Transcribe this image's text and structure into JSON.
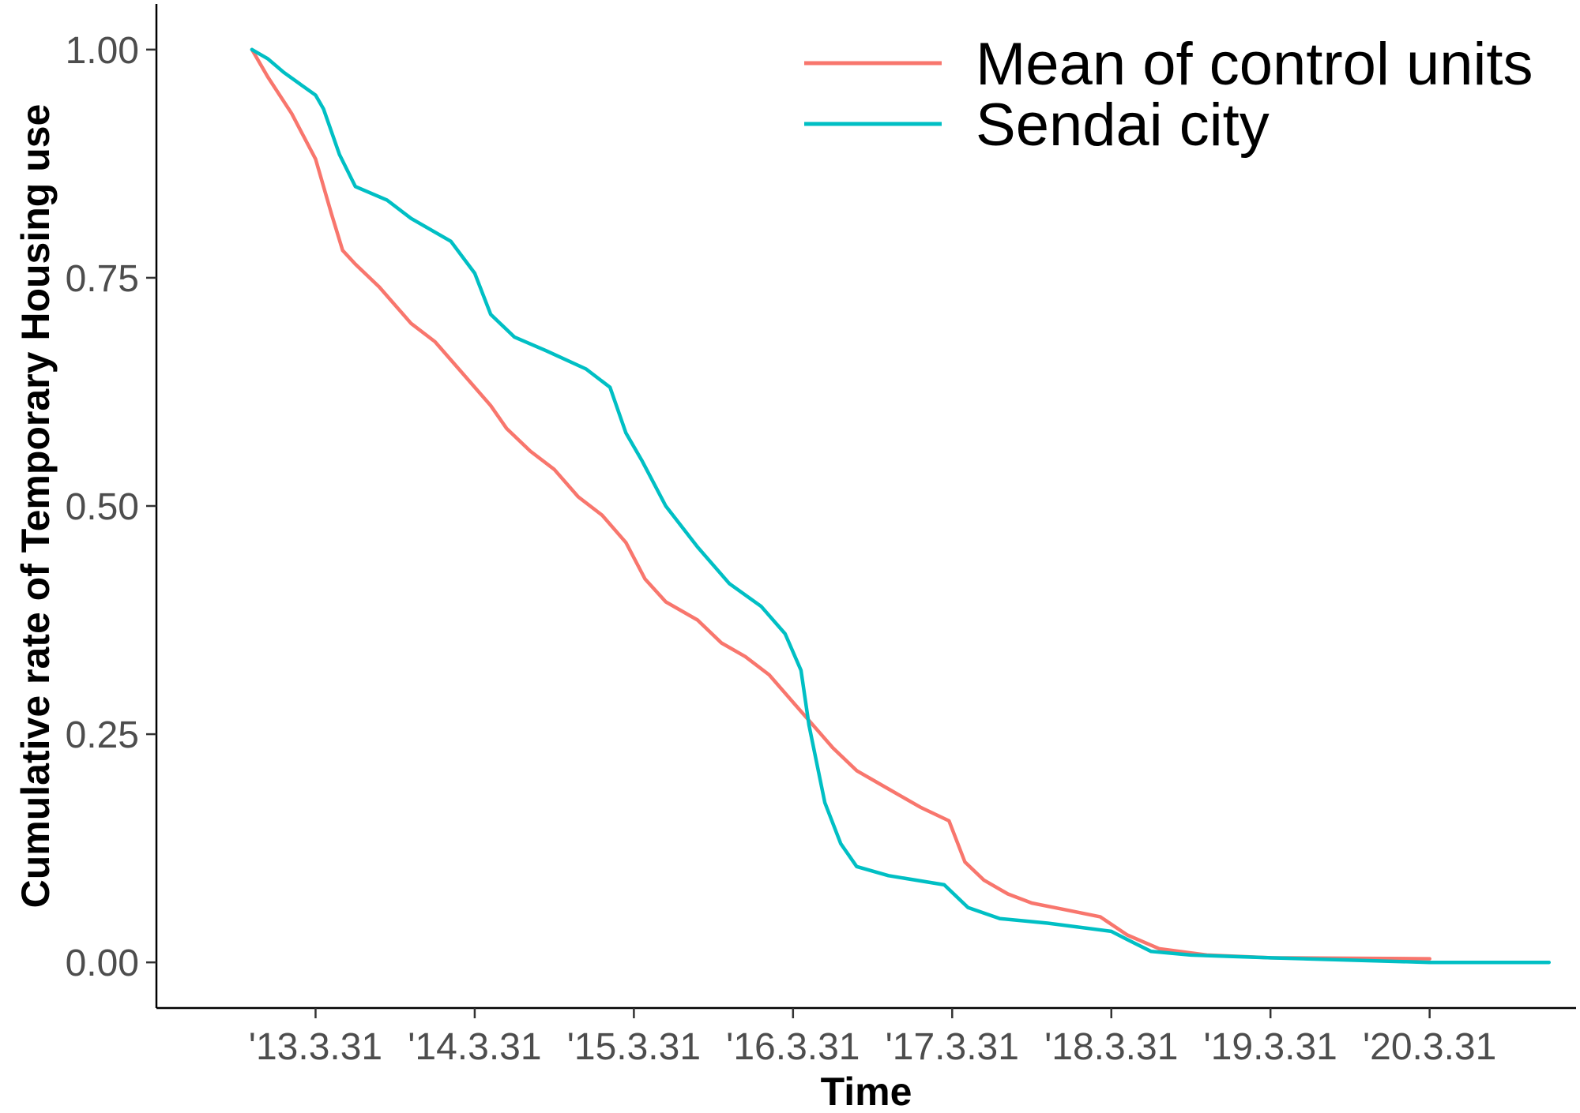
{
  "chart_data": {
    "type": "line",
    "title": "",
    "xlabel": "Time",
    "ylabel": "Cumulative rate of Temporary Housing use",
    "x_ticks": [
      {
        "pos": 1.0,
        "label": "'13.3.31"
      },
      {
        "pos": 2.0,
        "label": "'14.3.31"
      },
      {
        "pos": 3.0,
        "label": "'15.3.31"
      },
      {
        "pos": 4.0,
        "label": "'16.3.31"
      },
      {
        "pos": 5.0,
        "label": "'17.3.31"
      },
      {
        "pos": 6.0,
        "label": "'18.3.31"
      },
      {
        "pos": 7.0,
        "label": "'19.3.31"
      },
      {
        "pos": 8.0,
        "label": "'20.3.31"
      }
    ],
    "y_ticks": [
      {
        "value": 0.0,
        "label": "0.00"
      },
      {
        "value": 0.25,
        "label": "0.25"
      },
      {
        "value": 0.5,
        "label": "0.50"
      },
      {
        "value": 0.75,
        "label": "0.75"
      },
      {
        "value": 1.0,
        "label": "1.00"
      }
    ],
    "xlim": [
      0.0,
      8.92
    ],
    "ylim": [
      -0.05,
      1.05
    ],
    "grid": false,
    "legend_position": "top-right",
    "series": [
      {
        "name": "Mean of control units",
        "color": "#F8766D",
        "points": [
          [
            0.6,
            1.0
          ],
          [
            0.7,
            0.97
          ],
          [
            0.85,
            0.93
          ],
          [
            1.0,
            0.88
          ],
          [
            1.1,
            0.82
          ],
          [
            1.17,
            0.78
          ],
          [
            1.25,
            0.765
          ],
          [
            1.4,
            0.74
          ],
          [
            1.6,
            0.7
          ],
          [
            1.75,
            0.68
          ],
          [
            1.9,
            0.65
          ],
          [
            2.1,
            0.61
          ],
          [
            2.2,
            0.585
          ],
          [
            2.35,
            0.56
          ],
          [
            2.5,
            0.54
          ],
          [
            2.65,
            0.51
          ],
          [
            2.8,
            0.49
          ],
          [
            2.95,
            0.46
          ],
          [
            3.07,
            0.42
          ],
          [
            3.2,
            0.395
          ],
          [
            3.4,
            0.375
          ],
          [
            3.55,
            0.35
          ],
          [
            3.7,
            0.335
          ],
          [
            3.85,
            0.315
          ],
          [
            4.0,
            0.285
          ],
          [
            4.1,
            0.265
          ],
          [
            4.25,
            0.235
          ],
          [
            4.4,
            0.21
          ],
          [
            4.6,
            0.19
          ],
          [
            4.8,
            0.17
          ],
          [
            4.98,
            0.155
          ],
          [
            5.08,
            0.11
          ],
          [
            5.2,
            0.09
          ],
          [
            5.35,
            0.075
          ],
          [
            5.5,
            0.065
          ],
          [
            5.7,
            0.058
          ],
          [
            5.93,
            0.05
          ],
          [
            6.1,
            0.03
          ],
          [
            6.3,
            0.015
          ],
          [
            6.6,
            0.008
          ],
          [
            7.0,
            0.005
          ],
          [
            8.0,
            0.004
          ]
        ]
      },
      {
        "name": "Sendai city",
        "color": "#00BFC4",
        "points": [
          [
            0.6,
            1.0
          ],
          [
            0.7,
            0.99
          ],
          [
            0.8,
            0.975
          ],
          [
            1.0,
            0.95
          ],
          [
            1.05,
            0.935
          ],
          [
            1.15,
            0.885
          ],
          [
            1.25,
            0.85
          ],
          [
            1.45,
            0.835
          ],
          [
            1.6,
            0.815
          ],
          [
            1.85,
            0.79
          ],
          [
            2.0,
            0.755
          ],
          [
            2.1,
            0.71
          ],
          [
            2.25,
            0.685
          ],
          [
            2.45,
            0.67
          ],
          [
            2.7,
            0.65
          ],
          [
            2.85,
            0.63
          ],
          [
            2.95,
            0.58
          ],
          [
            3.05,
            0.55
          ],
          [
            3.2,
            0.5
          ],
          [
            3.4,
            0.455
          ],
          [
            3.6,
            0.415
          ],
          [
            3.8,
            0.39
          ],
          [
            3.95,
            0.36
          ],
          [
            4.05,
            0.32
          ],
          [
            4.1,
            0.26
          ],
          [
            4.2,
            0.175
          ],
          [
            4.3,
            0.13
          ],
          [
            4.4,
            0.105
          ],
          [
            4.6,
            0.095
          ],
          [
            4.95,
            0.085
          ],
          [
            5.1,
            0.06
          ],
          [
            5.3,
            0.048
          ],
          [
            5.6,
            0.043
          ],
          [
            6.0,
            0.034
          ],
          [
            6.1,
            0.025
          ],
          [
            6.25,
            0.012
          ],
          [
            6.5,
            0.008
          ],
          [
            7.0,
            0.005
          ],
          [
            8.0,
            0.0
          ],
          [
            8.75,
            0.0
          ]
        ]
      }
    ]
  }
}
